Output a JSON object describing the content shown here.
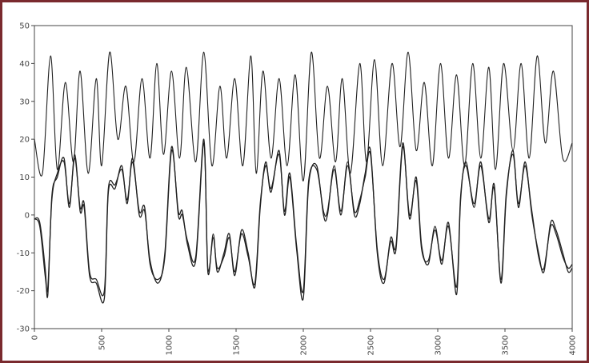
{
  "chart_data": {
    "type": "line",
    "title": "",
    "xlabel": "",
    "ylabel": "",
    "xlim": [
      0,
      4000
    ],
    "ylim": [
      -30,
      50
    ],
    "x_ticks": [
      "0",
      "500",
      "1000",
      "1500",
      "2000",
      "2500",
      "3000",
      "3500",
      "4000"
    ],
    "y_ticks": [
      "50",
      "40",
      "30",
      "20",
      "10",
      "0",
      "-10",
      "-20",
      "-30"
    ],
    "grid": false,
    "legend": "none",
    "frame_color": "#7a2a2e",
    "line_color": "#222222",
    "series": [
      {
        "x": [
          0,
          60,
          120,
          170,
          230,
          290,
          340,
          400,
          460,
          500,
          560,
          620,
          680,
          740,
          800,
          860,
          910,
          960,
          1020,
          1080,
          1130,
          1200,
          1260,
          1320,
          1380,
          1430,
          1490,
          1550,
          1610,
          1650,
          1700,
          1760,
          1820,
          1880,
          1940,
          2000,
          2060,
          2120,
          2180,
          2240,
          2290,
          2350,
          2420,
          2470,
          2530,
          2590,
          2660,
          2720,
          2780,
          2840,
          2900,
          2960,
          3020,
          3080,
          3140,
          3200,
          3260,
          3320,
          3380,
          3430,
          3490,
          3560,
          3620,
          3680,
          3740,
          3800,
          3860,
          3930,
          4000
        ],
        "y": [
          20,
          11,
          42,
          12,
          35,
          14,
          38,
          11,
          36,
          13,
          43,
          20,
          34,
          14,
          36,
          15,
          40,
          16,
          38,
          15,
          39,
          14,
          43,
          13,
          34,
          15,
          36,
          13,
          42,
          11,
          38,
          15,
          36,
          13,
          37,
          9,
          43,
          15,
          34,
          14,
          36,
          11,
          40,
          14,
          41,
          13,
          40,
          18,
          43,
          17,
          35,
          13,
          40,
          15,
          37,
          13,
          40,
          15,
          39,
          12,
          40,
          17,
          40,
          15,
          42,
          19,
          38,
          15,
          19
        ]
      },
      {
        "x": [
          0,
          40,
          80,
          100,
          130,
          170,
          220,
          260,
          300,
          340,
          370,
          410,
          460,
          520,
          550,
          600,
          650,
          690,
          730,
          780,
          820,
          860,
          920,
          970,
          1020,
          1070,
          1100,
          1140,
          1200,
          1260,
          1290,
          1330,
          1360,
          1410,
          1450,
          1490,
          1540,
          1590,
          1640,
          1680,
          1720,
          1760,
          1820,
          1860,
          1900,
          1950,
          2000,
          2040,
          2100,
          2150,
          2180,
          2230,
          2280,
          2330,
          2380,
          2420,
          2460,
          2500,
          2550,
          2600,
          2650,
          2690,
          2740,
          2790,
          2840,
          2880,
          2930,
          2980,
          3030,
          3080,
          3140,
          3170,
          3210,
          3270,
          3320,
          3380,
          3420,
          3470,
          3510,
          3560,
          3600,
          3650,
          3700,
          3750,
          3790,
          3840,
          3880,
          3930,
          3970,
          4000
        ],
        "y": [
          -1,
          -2,
          -14,
          -21,
          5,
          10,
          15,
          2,
          16,
          1,
          2,
          -16,
          -18,
          -22,
          6,
          7,
          13,
          3,
          15,
          0,
          1,
          -12,
          -18,
          -10,
          18,
          0,
          0,
          -7,
          -11,
          20,
          -15,
          -5,
          -15,
          -10,
          -5,
          -16,
          -4,
          -10,
          -19,
          2,
          14,
          6,
          17,
          0,
          10,
          -9,
          -22,
          8,
          13,
          0,
          0,
          13,
          0,
          14,
          0,
          3,
          11,
          17,
          -10,
          -18,
          -6,
          -8,
          19,
          -1,
          10,
          -8,
          -13,
          -3,
          -13,
          -2,
          -21,
          4,
          14,
          2,
          14,
          -2,
          8,
          -18,
          5,
          17,
          2,
          14,
          0,
          -10,
          -15,
          -2,
          -4,
          -10,
          -15,
          -14
        ]
      },
      {
        "x": [
          0,
          40,
          80,
          100,
          130,
          170,
          220,
          260,
          300,
          340,
          370,
          410,
          460,
          520,
          550,
          600,
          650,
          690,
          730,
          780,
          820,
          860,
          920,
          970,
          1020,
          1070,
          1100,
          1140,
          1200,
          1260,
          1290,
          1330,
          1360,
          1410,
          1450,
          1490,
          1540,
          1590,
          1640,
          1680,
          1720,
          1760,
          1820,
          1860,
          1900,
          1950,
          2000,
          2040,
          2100,
          2150,
          2180,
          2230,
          2280,
          2330,
          2380,
          2420,
          2460,
          2500,
          2550,
          2600,
          2650,
          2690,
          2740,
          2790,
          2840,
          2880,
          2930,
          2980,
          3030,
          3080,
          3140,
          3170,
          3210,
          3270,
          3320,
          3380,
          3420,
          3470,
          3510,
          3560,
          3600,
          3650,
          3700,
          3750,
          3790,
          3840,
          3880,
          3930,
          3970,
          4000
        ],
        "y": [
          -1,
          -3,
          -16,
          -19,
          4,
          11,
          14,
          3,
          15,
          2,
          3,
          -15,
          -17,
          -20,
          7,
          8,
          12,
          4,
          14,
          1,
          2,
          -13,
          -17,
          -11,
          17,
          1,
          1,
          -8,
          -12,
          19,
          -14,
          -6,
          -14,
          -11,
          -6,
          -15,
          -5,
          -11,
          -18,
          3,
          13,
          7,
          16,
          1,
          11,
          -8,
          -20,
          9,
          12,
          1,
          1,
          12,
          1,
          13,
          1,
          4,
          10,
          16,
          -9,
          -17,
          -7,
          -9,
          18,
          0,
          9,
          -9,
          -12,
          -4,
          -12,
          -3,
          -19,
          5,
          13,
          3,
          13,
          -1,
          7,
          -17,
          6,
          16,
          3,
          13,
          1,
          -11,
          -14,
          -3,
          -5,
          -11,
          -14,
          -13
        ]
      }
    ]
  }
}
